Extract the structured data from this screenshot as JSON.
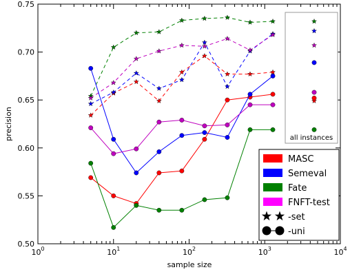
{
  "chart_data": {
    "type": "line",
    "xlabel": "sample size",
    "ylabel": "precision",
    "xscale": "log",
    "xlim": [
      1,
      10000
    ],
    "ylim": [
      0.5,
      0.75
    ],
    "x_ticks": [
      {
        "value": 1,
        "base": "10",
        "exp": "0"
      },
      {
        "value": 10,
        "base": "10",
        "exp": "1"
      },
      {
        "value": 100,
        "base": "10",
        "exp": "2"
      },
      {
        "value": 1000,
        "base": "10",
        "exp": "3"
      },
      {
        "value": 10000,
        "base": "10",
        "exp": "4"
      }
    ],
    "y_ticks": [
      "0.50",
      "0.55",
      "0.60",
      "0.65",
      "0.70",
      "0.75"
    ],
    "x": [
      5,
      10,
      20,
      40,
      80,
      160,
      320,
      640,
      1280
    ],
    "series": [
      {
        "name": "MASC",
        "color": "#ff0000",
        "kind": "set",
        "values": [
          0.634,
          0.657,
          0.669,
          0.649,
          0.679,
          0.696,
          0.677,
          0.677,
          0.679
        ],
        "all_instances": 0.649
      },
      {
        "name": "Semeval",
        "color": "#0000ff",
        "kind": "set",
        "values": [
          0.646,
          0.658,
          0.678,
          0.662,
          0.671,
          0.71,
          0.664,
          0.701,
          0.719
        ],
        "all_instances": 0.722
      },
      {
        "name": "Fate",
        "color": "#008000",
        "kind": "set",
        "values": [
          0.654,
          0.705,
          0.72,
          0.721,
          0.733,
          0.735,
          0.736,
          0.731,
          0.732
        ],
        "all_instances": 0.732
      },
      {
        "name": "FNFT-test",
        "color": "#bf00bf",
        "kind": "set",
        "values": [
          0.652,
          0.668,
          0.693,
          0.701,
          0.707,
          0.706,
          0.714,
          0.702,
          0.718
        ],
        "all_instances": 0.707
      },
      {
        "name": "MASC",
        "color": "#ff0000",
        "kind": "uni",
        "values": [
          0.569,
          0.55,
          0.542,
          0.574,
          0.576,
          0.609,
          0.65,
          0.653,
          0.656
        ],
        "all_instances": 0.652
      },
      {
        "name": "Semeval",
        "color": "#0000ff",
        "kind": "uni",
        "values": [
          0.683,
          0.609,
          0.574,
          0.596,
          0.613,
          0.616,
          0.611,
          0.656,
          0.675
        ],
        "all_instances": 0.689
      },
      {
        "name": "Fate",
        "color": "#008000",
        "kind": "uni",
        "values": [
          0.584,
          0.517,
          0.54,
          0.535,
          0.535,
          0.546,
          0.548,
          0.619,
          0.619
        ],
        "all_instances": 0.619
      },
      {
        "name": "FNFT-test",
        "color": "#bf00bf",
        "kind": "uni",
        "values": [
          0.621,
          0.594,
          0.599,
          0.627,
          0.629,
          0.623,
          0.624,
          0.645,
          0.645
        ],
        "all_instances": 0.658
      }
    ],
    "inset_label": "all instances",
    "legend": {
      "placement": "lower-right",
      "entries": [
        {
          "label": "MASC",
          "kind": "patch",
          "color": "#ff0000"
        },
        {
          "label": "Semeval",
          "kind": "patch",
          "color": "#0000ff"
        },
        {
          "label": "Fate",
          "kind": "patch",
          "color": "#008000"
        },
        {
          "label": "FNFT-test",
          "kind": "patch",
          "color": "#ff00ff"
        },
        {
          "label": "-set",
          "kind": "star",
          "color": "#000000"
        },
        {
          "label": "-uni",
          "kind": "circle",
          "color": "#000000"
        }
      ]
    },
    "grid": false
  }
}
